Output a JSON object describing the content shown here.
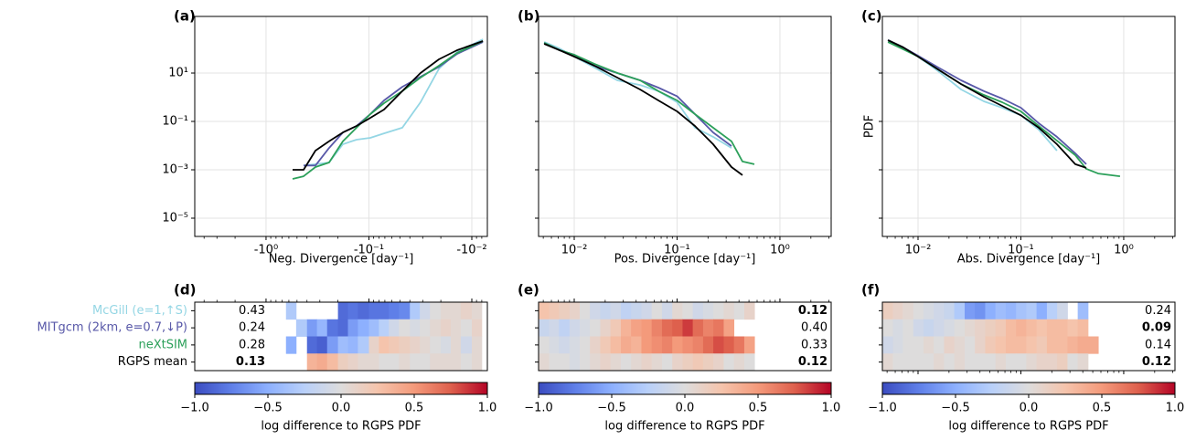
{
  "chart_data": [
    {
      "type": "line",
      "title": "(a)",
      "xlabel": "Neg. Divergence [day⁻¹]",
      "log_x": true,
      "log_y": true,
      "grid": true,
      "xlim": [
        -4.93,
        -0.00706
      ],
      "xticks": [
        {
          "value": -1,
          "label": "-10⁰"
        },
        {
          "value": -0.1,
          "label": "-10⁻¹"
        },
        {
          "value": -0.01,
          "label": "-10⁻²"
        }
      ],
      "ylim": [
        1.76e-06,
        2190
      ],
      "yticks": [
        {
          "value": 10,
          "label": "10¹"
        },
        {
          "value": 0.1,
          "label": "10⁻¹"
        },
        {
          "value": 0.001,
          "label": "10⁻³"
        },
        {
          "value": 1e-05,
          "label": "10⁻⁵"
        }
      ],
      "x": [
        -0.552,
        -0.432,
        -0.331,
        -0.244,
        -0.179,
        -0.132,
        -0.097,
        -0.0713,
        -0.0474,
        -0.0315,
        -0.0209,
        -0.0139,
        -0.0078
      ],
      "series": [
        {
          "name": "McGill (e=1,↑S)",
          "color": "#94d6e4",
          "values": [
            null,
            0.0015,
            0.0017,
            0.002,
            0.0114,
            0.0176,
            0.021,
            0.032,
            0.055,
            0.62,
            15,
            74,
            249
          ]
        },
        {
          "name": "MITgcm (2km, e=0.7,↓P)",
          "color": "#5858a8",
          "values": [
            null,
            0.0015,
            0.0015,
            0.008,
            0.035,
            0.065,
            0.2,
            0.74,
            2.7,
            7.1,
            18,
            62,
            192
          ]
        },
        {
          "name": "neXtSIM",
          "color": "#2ca05a",
          "values": [
            0.00042,
            0.00054,
            0.0013,
            0.002,
            0.015,
            0.055,
            0.2,
            0.57,
            1.8,
            6.5,
            20,
            68,
            209
          ]
        },
        {
          "name": "RGPS mean",
          "color": "#000000",
          "values": [
            0.001,
            0.001,
            0.0062,
            0.015,
            0.035,
            0.065,
            0.14,
            0.31,
            1.8,
            10,
            37,
            88,
            209
          ]
        }
      ]
    },
    {
      "type": "line",
      "title": "(b)",
      "xlabel": "Pos. Divergence [day⁻¹]",
      "log_x": true,
      "log_y": true,
      "grid": true,
      "sharey": true,
      "xlim": [
        0.0045,
        3.15
      ],
      "xticks": [
        {
          "value": 0.01,
          "label": "10⁻²"
        },
        {
          "value": 0.1,
          "label": "10⁻¹"
        },
        {
          "value": 1,
          "label": "10⁰"
        }
      ],
      "x": [
        0.0051,
        0.0072,
        0.01,
        0.0157,
        0.0262,
        0.0437,
        0.0658,
        0.1,
        0.149,
        0.224,
        0.338,
        0.432,
        0.564
      ],
      "series": [
        {
          "color": "#94d6e4",
          "values": [
            192,
            104,
            48,
            17,
            5.0,
            3.2,
            1.8,
            0.62,
            0.055,
            0.023,
            0.008,
            null,
            null
          ]
        },
        {
          "color": "#5858a8",
          "values": [
            176,
            88,
            57,
            20,
            10,
            5.0,
            2.5,
            1.1,
            0.2,
            0.035,
            0.0096,
            null,
            null
          ]
        },
        {
          "color": "#2ca05a",
          "values": [
            176,
            88,
            57,
            24,
            10,
            5.0,
            1.8,
            0.74,
            0.2,
            0.055,
            0.015,
            0.0022,
            0.0017
          ]
        },
        {
          "color": "#000000",
          "values": [
            161,
            88,
            48,
            20,
            6.5,
            2.1,
            0.74,
            0.26,
            0.065,
            0.0114,
            0.0013,
            0.0006,
            null
          ]
        }
      ]
    },
    {
      "type": "line",
      "title": "(c)",
      "xlabel": "Abs. Divergence [day⁻¹]",
      "ylabel": "PDF",
      "log_x": true,
      "log_y": true,
      "grid": true,
      "sharey": true,
      "xlim": [
        0.0045,
        3.15
      ],
      "xticks": [
        {
          "value": 0.01,
          "label": "10⁻²"
        },
        {
          "value": 0.1,
          "label": "10⁻¹"
        },
        {
          "value": 1,
          "label": "10⁰"
        }
      ],
      "x": [
        0.0051,
        0.0072,
        0.01,
        0.0157,
        0.0262,
        0.0437,
        0.0658,
        0.1,
        0.149,
        0.224,
        0.338,
        0.432,
        0.564,
        0.92
      ],
      "series": [
        {
          "color": "#94d6e4",
          "values": [
            228,
            114,
            48,
            12,
            2.1,
            0.68,
            0.37,
            0.18,
            0.046,
            0.0062,
            null,
            null,
            null,
            null
          ]
        },
        {
          "color": "#5858a8",
          "values": [
            228,
            114,
            52,
            17,
            5.0,
            1.8,
            0.88,
            0.37,
            0.084,
            0.023,
            0.0048,
            0.0017,
            null,
            null
          ]
        },
        {
          "color": "#2ca05a",
          "values": [
            192,
            96,
            48,
            14,
            3.5,
            1.24,
            0.62,
            0.26,
            0.065,
            0.016,
            0.004,
            0.0011,
            0.0007,
            0.00054
          ]
        },
        {
          "color": "#000000",
          "values": [
            228,
            114,
            48,
            14,
            3.5,
            1.05,
            0.44,
            0.18,
            0.055,
            0.0114,
            0.0017,
            0.0012,
            null,
            null
          ]
        }
      ]
    },
    {
      "type": "heatmap",
      "title": "(d)",
      "show_row_names": true,
      "score_side": "left",
      "tick_side": "top",
      "bins": [
        -0.64,
        -0.51,
        -0.4,
        -0.32,
        -0.255,
        -0.2,
        -0.16,
        -0.128,
        -0.1,
        -0.08,
        -0.064,
        -0.051,
        -0.04,
        -0.032,
        -0.0255,
        -0.02,
        -0.016,
        -0.0128,
        -0.01,
        -0.008
      ],
      "matrix": [
        [
          -0.3,
          null,
          null,
          null,
          null,
          -0.85,
          -0.8,
          -0.85,
          -0.8,
          -0.8,
          -0.75,
          -0.7,
          -0.3,
          -0.1,
          0,
          0.05,
          0.05,
          0.1,
          0.05
        ],
        [
          null,
          -0.3,
          -0.6,
          -0.45,
          -0.8,
          -0.85,
          -0.6,
          -0.5,
          -0.4,
          -0.25,
          -0.1,
          0,
          -0.05,
          0,
          0.05,
          0.1,
          0.05,
          0,
          0.1
        ],
        [
          -0.5,
          null,
          -0.85,
          -0.9,
          -0.6,
          -0.4,
          -0.45,
          -0.3,
          0.1,
          0.25,
          0.2,
          0.15,
          0.1,
          0.05,
          0,
          -0.05,
          0.05,
          -0.1,
          0.05
        ],
        [
          null,
          null,
          0.35,
          0.4,
          0.3,
          0.15,
          0.1,
          0.05,
          0.05,
          0,
          0,
          0.05,
          0,
          0,
          0.05,
          0.05,
          0.05,
          0,
          0.05
        ]
      ],
      "scores": [
        0.43,
        0.24,
        0.28,
        0.13
      ],
      "bold_scores": [
        3
      ],
      "clim": [
        -1,
        1
      ],
      "cticks": [
        {
          "value": -1,
          "label": "−1.0"
        },
        {
          "value": -0.5,
          "label": "−0.5"
        },
        {
          "value": 0,
          "label": "0.0"
        },
        0.5,
        {
          "value": 1,
          "label": "1.0"
        }
      ],
      "colorbar_label": "log difference to RGPS PDF"
    },
    {
      "type": "heatmap",
      "title": "(e)",
      "score_side": "right",
      "tick_side": "top",
      "bins": [
        0.0045,
        0.0057,
        0.0071,
        0.009,
        0.0113,
        0.0142,
        0.0179,
        0.0225,
        0.0284,
        0.0357,
        0.045,
        0.0566,
        0.0713,
        0.0898,
        0.113,
        0.142,
        0.179,
        0.225,
        0.284,
        0.357,
        0.45,
        0.566
      ],
      "matrix": [
        [
          0.25,
          0.2,
          0.15,
          0.1,
          0,
          -0.1,
          -0.15,
          -0.1,
          -0.2,
          -0.15,
          -0.1,
          0,
          -0.1,
          0.05,
          0,
          -0.1,
          -0.05,
          0,
          0.05,
          0,
          0.1
        ],
        [
          -0.15,
          -0.1,
          -0.2,
          -0.1,
          -0.05,
          0,
          0.1,
          0.2,
          0.35,
          0.45,
          0.5,
          0.6,
          0.7,
          0.75,
          0.85,
          0.7,
          0.6,
          0.65,
          0.45,
          null,
          null
        ],
        [
          0,
          -0.05,
          -0.1,
          -0.05,
          0,
          0.1,
          0.2,
          0.3,
          0.4,
          0.35,
          0.5,
          0.55,
          0.6,
          0.5,
          0.55,
          0.6,
          0.7,
          0.8,
          0.75,
          0.65,
          0.45
        ],
        [
          0.05,
          0,
          0,
          -0.05,
          0,
          0.05,
          0.1,
          0.05,
          0,
          0.05,
          0.1,
          0.05,
          0,
          0.1,
          0.15,
          0.2,
          0.15,
          0.1,
          0,
          0.05,
          0
        ]
      ],
      "scores": [
        0.12,
        0.4,
        0.33,
        0.12
      ],
      "score_labels": [
        "0.12",
        "0.40",
        "0.33",
        "0.12"
      ],
      "bold_scores": [
        0,
        3
      ],
      "clim": [
        -1,
        1
      ],
      "cticks": [
        {
          "value": -1,
          "label": "−1.0"
        },
        {
          "value": -0.5,
          "label": "−0.5"
        },
        {
          "value": 0,
          "label": "0.0"
        },
        0.5,
        {
          "value": 1,
          "label": "1.0"
        }
      ],
      "colorbar_label": "log difference to RGPS PDF"
    },
    {
      "type": "heatmap",
      "title": "(f)",
      "score_side": "right",
      "tick_side": "bottom",
      "bins": [
        0.0045,
        0.0057,
        0.0071,
        0.009,
        0.0113,
        0.0142,
        0.0179,
        0.0225,
        0.0284,
        0.0357,
        0.045,
        0.0566,
        0.0713,
        0.0898,
        0.113,
        0.142,
        0.179,
        0.225,
        0.284,
        0.357,
        0.45,
        0.566
      ],
      "matrix": [
        [
          0.15,
          0.1,
          0.05,
          0,
          -0.05,
          -0.1,
          -0.15,
          -0.3,
          -0.6,
          -0.65,
          -0.5,
          -0.4,
          -0.45,
          -0.35,
          -0.3,
          -0.5,
          -0.25,
          -0.1,
          null,
          -0.4,
          null
        ],
        [
          0,
          -0.05,
          0,
          -0.1,
          -0.15,
          -0.1,
          -0.05,
          0,
          0.05,
          0.1,
          0.15,
          0.2,
          0.3,
          0.35,
          0.3,
          0.25,
          0.3,
          0.3,
          0.25,
          0.3,
          null
        ],
        [
          -0.1,
          -0.05,
          0,
          0,
          0.05,
          0,
          0.1,
          0.05,
          0,
          0.1,
          0.2,
          0.25,
          0.3,
          0.3,
          0.25,
          0.2,
          0.3,
          0.3,
          0.35,
          0.4,
          0.4
        ],
        [
          0.05,
          0,
          0,
          0,
          0,
          0.05,
          0,
          0.05,
          0,
          0,
          0,
          0.05,
          0,
          0,
          0.05,
          0.1,
          0.1,
          0.15,
          0,
          0.05,
          null
        ]
      ],
      "scores": [
        0.24,
        0.09,
        0.14,
        0.12
      ],
      "bold_scores": [
        1,
        3
      ],
      "clim": [
        -1,
        1
      ],
      "cticks": [
        {
          "value": -1,
          "label": "−1.0"
        },
        {
          "value": -0.5,
          "label": "−0.5"
        },
        {
          "value": 0,
          "label": "0.0"
        },
        0.5,
        {
          "value": 1,
          "label": "1.0"
        }
      ],
      "colorbar_label": "log difference to RGPS PDF"
    }
  ]
}
